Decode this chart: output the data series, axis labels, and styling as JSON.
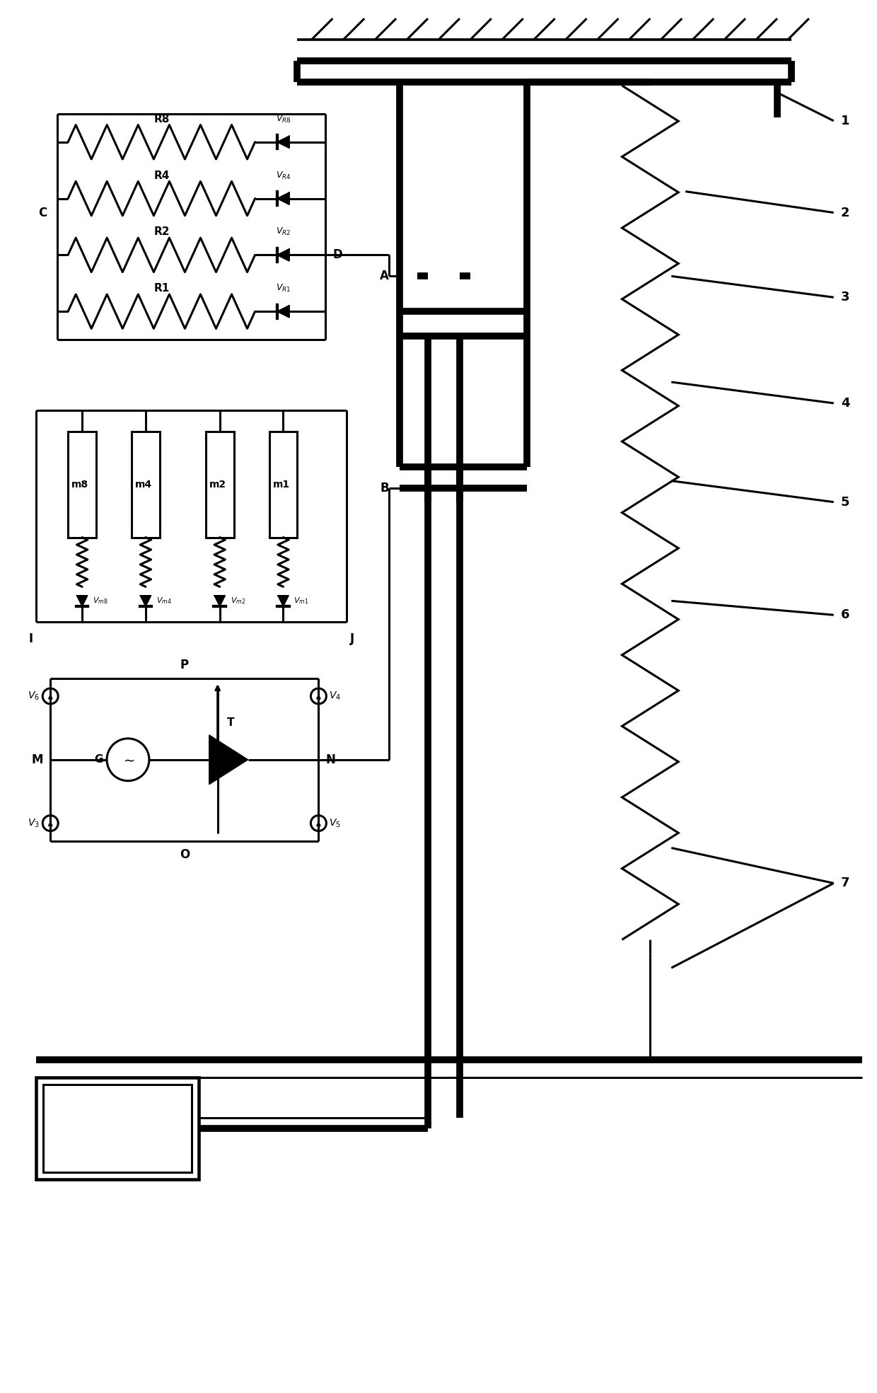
{
  "bg": "#ffffff",
  "lc": "#000000",
  "lw": 2.2,
  "lw_thick": 7.0,
  "fig_w": 12.4,
  "fig_h": 19.69,
  "xlim": [
    0,
    124
  ],
  "ylim": [
    0,
    196.9
  ]
}
